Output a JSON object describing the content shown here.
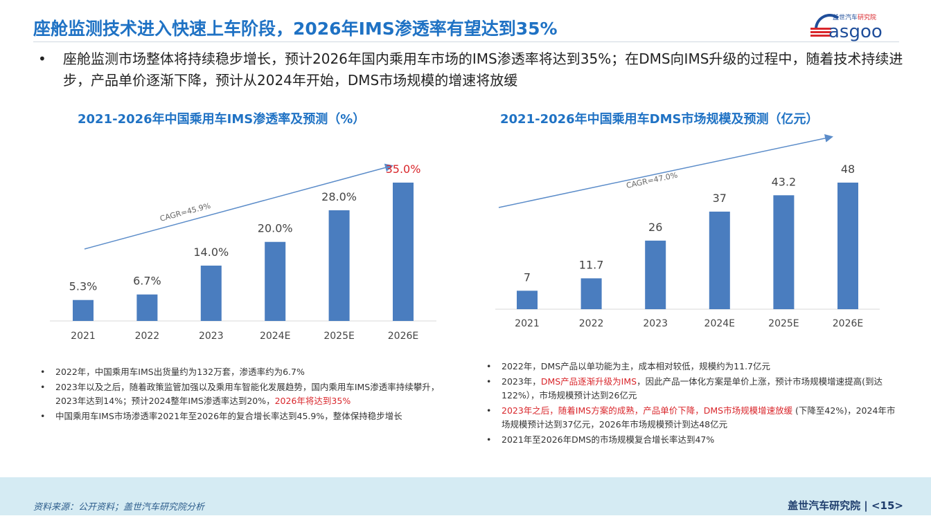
{
  "header": {
    "title": "座舱监测技术进入快速上车阶段，2026年IMS渗透率有望达到35%",
    "logo_text": "盖世汽车研究院 Gasgoo"
  },
  "intro": {
    "bullet": "•",
    "text": "座舱监测市场整体将持续稳步增长，预计2026年国内乘用车市场的IMS渗透率将达到35%；在DMS向IMS升级的过程中，随着技术持续进步，产品单价逐渐下降，预计从2024年开始，DMS市场规模的增速将放缓"
  },
  "colors": {
    "accent": "#1f72c4",
    "bar": "#4a7dbf",
    "highlight": "#d9262b",
    "footer": "#d5ebf3"
  },
  "chart_data": [
    {
      "type": "bar",
      "title": "2021-2026年中国乘用车IMS渗透率及预测（%）",
      "categories": [
        "2021",
        "2022",
        "2023",
        "2024E",
        "2025E",
        "2026E"
      ],
      "values": [
        5.3,
        6.7,
        14.0,
        20.0,
        28.0,
        35.0
      ],
      "data_labels": [
        "5.3%",
        "6.7%",
        "14.0%",
        "20.0%",
        "28.0%",
        "35.0%"
      ],
      "highlight_index": 5,
      "annotation": "CAGR=45.9%",
      "grid": false
    },
    {
      "type": "bar",
      "title": "2021-2026年中国乘用车DMS市场规模及预测（亿元）",
      "categories": [
        "2021",
        "2022",
        "2023",
        "2024E",
        "2025E",
        "2026E"
      ],
      "values": [
        7,
        11.7,
        26,
        37,
        43.2,
        48
      ],
      "data_labels": [
        "7",
        "11.7",
        "26",
        "37",
        "43.2",
        "48"
      ],
      "annotation": "CAGR=47.0%",
      "grid": false
    }
  ],
  "left_notes": [
    {
      "parts": [
        {
          "t": "2022年，中国乘用车IMS出货量约为132万套，渗透率约为6.7%",
          "red": false
        }
      ]
    },
    {
      "parts": [
        {
          "t": "2023年以及之后，随着政策监管加强以及乘用车智能化发展趋势，国内乘用车IMS渗透率持续攀升，2023年达到14%；预计2024整年IMS渗透率达到20%，",
          "red": false
        },
        {
          "t": "2026年将达到35%",
          "red": true
        }
      ]
    },
    {
      "parts": [
        {
          "t": "中国乘用车IMS市场渗透率2021年至2026年的复合增长率达到45.9%，整体保持稳步增长",
          "red": false
        }
      ]
    }
  ],
  "right_notes": [
    {
      "parts": [
        {
          "t": "2022年，DMS产品以单功能为主，成本相对较低，规模约为11.7亿元",
          "red": false
        }
      ]
    },
    {
      "parts": [
        {
          "t": "2023年，",
          "red": false
        },
        {
          "t": "DMS产品逐渐升级为IMS",
          "red": true
        },
        {
          "t": "，因此产品一体化方案是单价上涨，预计市场规模增速提高(到达122%），市场规模预计达到26亿元",
          "red": false
        }
      ]
    },
    {
      "parts": [
        {
          "t": "2023年之后，随着IMS方案的成熟，产品单价下降，DMS市场规模增速放缓",
          "red": true
        },
        {
          "t": " (下降至42%)，2024年市场规模预计达到37亿元，2026年市场规模预计到达48亿元",
          "red": false
        }
      ]
    },
    {
      "parts": [
        {
          "t": "2021年至2026年DMS的市场规模复合增长率达到47%",
          "red": false
        }
      ]
    }
  ],
  "footer": {
    "source": "资料来源：公开资料；盖世汽车研究院分析",
    "brand_page": "盖世汽车研究院 | <15>"
  }
}
